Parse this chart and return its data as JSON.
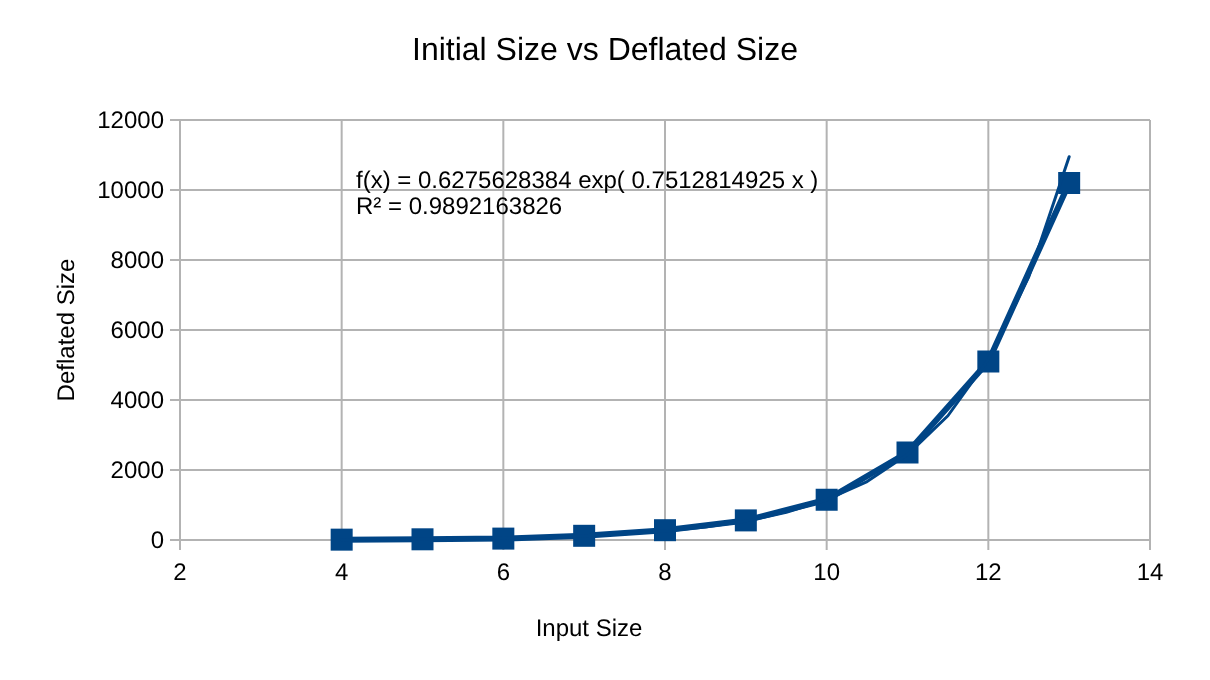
{
  "chart_data": {
    "type": "line",
    "title": "Initial Size vs Deflated Size",
    "xlabel": "Input Size",
    "ylabel": "Deflated Size",
    "x": [
      4,
      5,
      6,
      7,
      8,
      9,
      10,
      11,
      12,
      13
    ],
    "series": [
      {
        "color": "#004586",
        "values": [
          10,
          20,
          40,
          120,
          280,
          560,
          1150,
          2500,
          5100,
          10200
        ],
        "marker": "square"
      },
      {
        "type": "line",
        "color": "#004586",
        "marker": "none",
        "x": [
          4,
          4.5,
          5,
          5.5,
          6,
          6.5,
          7,
          7.5,
          8,
          8.5,
          9,
          9.5,
          10,
          10.5,
          11,
          11.5,
          12,
          12.5,
          13
        ],
        "values": [
          10,
          20,
          30,
          40,
          60,
          80,
          120,
          180,
          260,
          370,
          540,
          790,
          1150,
          1670,
          2440,
          3550,
          5160,
          7520,
          10950
        ]
      }
    ],
    "xlim": [
      2,
      14
    ],
    "xticks": [
      2,
      4,
      6,
      8,
      10,
      12,
      14
    ],
    "ylim": [
      0,
      12000
    ],
    "yticks": [
      0,
      2000,
      4000,
      6000,
      8000,
      10000,
      12000
    ],
    "grid": true,
    "annotations": [
      "f(x) = 0.6275628384 exp( 0.7512814925 x )",
      "R² = 0.9892163826"
    ]
  }
}
